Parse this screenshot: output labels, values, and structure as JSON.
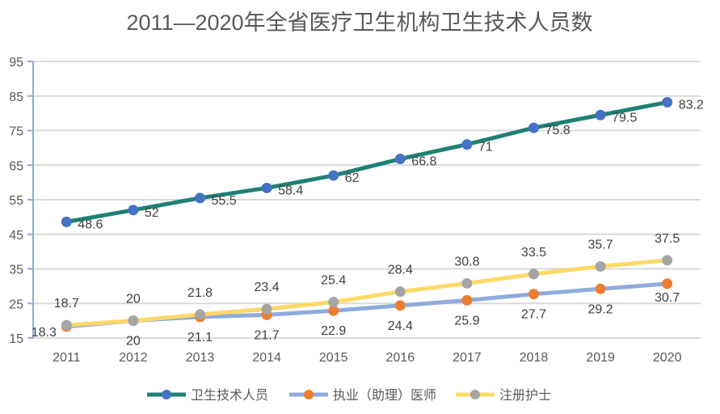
{
  "chart_data": {
    "type": "line",
    "title": "2011—2020年全省医疗卫生机构卫生技术人员数",
    "xlabel": "",
    "ylabel": "",
    "categories": [
      "2011",
      "2012",
      "2013",
      "2014",
      "2015",
      "2016",
      "2017",
      "2018",
      "2019",
      "2020"
    ],
    "yticks": [
      "15",
      "25",
      "35",
      "45",
      "55",
      "65",
      "75",
      "85",
      "95"
    ],
    "ylim": [
      15,
      95
    ],
    "grid": true,
    "legend_position": "bottom",
    "series": [
      {
        "name": "卫生技术人员",
        "line_color": "#1f8074",
        "marker_color": "#4472c4",
        "label_position": "right",
        "values": [
          48.6,
          52,
          55.5,
          58.4,
          62,
          66.8,
          71,
          75.8,
          79.5,
          83.2
        ]
      },
      {
        "name": "执业（助理）医师",
        "line_color": "#8faadc",
        "marker_color": "#ed7d31",
        "label_position": "below",
        "values": [
          18.3,
          20,
          21.1,
          21.7,
          22.9,
          24.4,
          25.9,
          27.7,
          29.2,
          30.7
        ]
      },
      {
        "name": "注册护士",
        "line_color": "#ffd966",
        "marker_color": "#a5a5a5",
        "label_position": "above",
        "values": [
          18.7,
          20,
          21.8,
          23.4,
          25.4,
          28.4,
          30.8,
          33.5,
          35.7,
          37.5
        ]
      }
    ]
  },
  "colors": {
    "grid": "#d9d9d9",
    "axis": "#8faadc",
    "text": "#595959"
  }
}
